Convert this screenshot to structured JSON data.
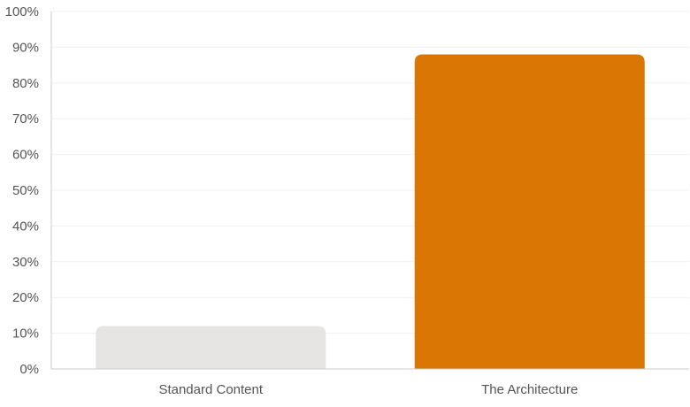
{
  "chart_data": {
    "type": "bar",
    "title": "",
    "xlabel": "",
    "ylabel": "",
    "categories": [
      "Standard Content",
      "The Architecture"
    ],
    "values": [
      12,
      88
    ],
    "bar_colors": [
      "#e6e5e3",
      "#d97604"
    ],
    "ylim": [
      0,
      100
    ],
    "y_ticks": [
      "0%",
      "10%",
      "20%",
      "30%",
      "40%",
      "50%",
      "60%",
      "70%",
      "80%",
      "90%",
      "100%"
    ],
    "y_tick_values": [
      0,
      10,
      20,
      30,
      40,
      50,
      60,
      70,
      80,
      90,
      100
    ],
    "grid": true,
    "legend": "none"
  },
  "colors": {
    "axis": "#cccccc",
    "grid": "#f0f0f0",
    "tick_text": "#555555"
  }
}
